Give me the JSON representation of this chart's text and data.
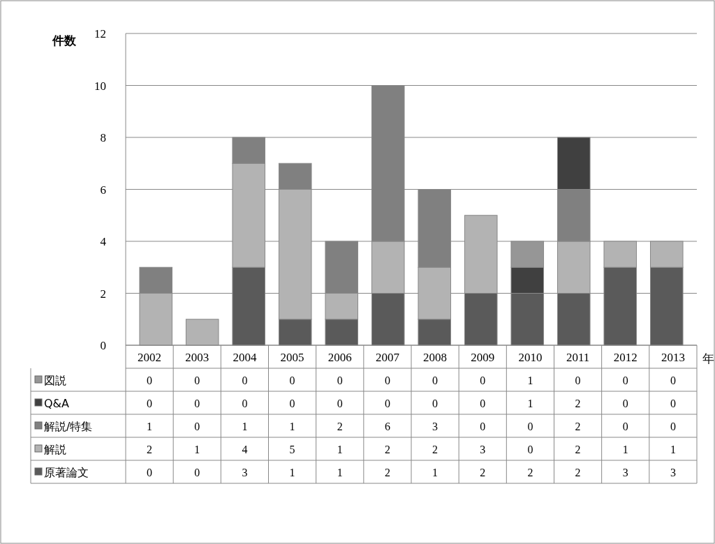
{
  "chart_data": {
    "type": "bar",
    "stacked": true,
    "ylabel": "件数",
    "xlabel": "年",
    "categories": [
      "2002",
      "2003",
      "2004",
      "2005",
      "2006",
      "2007",
      "2008",
      "2009",
      "2010",
      "2011",
      "2012",
      "2013"
    ],
    "series": [
      {
        "name": "原著論文",
        "color": "#5a5a5a",
        "values": [
          0,
          0,
          3,
          1,
          1,
          2,
          1,
          2,
          2,
          2,
          3,
          3
        ]
      },
      {
        "name": "解説",
        "color": "#b3b3b3",
        "values": [
          2,
          1,
          4,
          5,
          1,
          2,
          2,
          3,
          0,
          2,
          1,
          1
        ]
      },
      {
        "name": "解説/特集",
        "color": "#808080",
        "values": [
          1,
          0,
          1,
          1,
          2,
          6,
          3,
          0,
          0,
          2,
          0,
          0
        ]
      },
      {
        "name": "Q&A",
        "color": "#404040",
        "values": [
          0,
          0,
          0,
          0,
          0,
          0,
          0,
          0,
          1,
          2,
          0,
          0
        ]
      },
      {
        "name": "図説",
        "color": "#969696",
        "values": [
          0,
          0,
          0,
          0,
          0,
          0,
          0,
          0,
          1,
          0,
          0,
          0
        ]
      }
    ],
    "ylim": [
      0,
      12
    ],
    "yticks": [
      0,
      2,
      4,
      6,
      8,
      10,
      12
    ],
    "grid": "y",
    "legend": "bottom",
    "data_labels": true
  }
}
